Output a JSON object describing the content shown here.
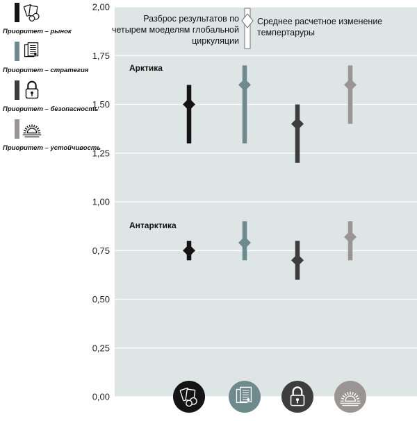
{
  "chart_data": {
    "type": "range",
    "title": "",
    "xlabel": "",
    "ylabel": "",
    "ylim": [
      0,
      2
    ],
    "y_ticks": [
      "0,00",
      "0,25",
      "0,50",
      "0,75",
      "1,00",
      "1,25",
      "1,50",
      "1,75",
      "2,00"
    ],
    "grid": true,
    "background_color": "#dde6e4",
    "groups": [
      {
        "label": "Арктика",
        "points": [
          {
            "series": 0,
            "min": 1.3,
            "max": 1.6,
            "mean": 1.5
          },
          {
            "series": 1,
            "min": 1.3,
            "max": 1.7,
            "mean": 1.6
          },
          {
            "series": 2,
            "min": 1.2,
            "max": 1.5,
            "mean": 1.4
          },
          {
            "series": 3,
            "min": 1.4,
            "max": 1.7,
            "mean": 1.6
          }
        ]
      },
      {
        "label": "Антарктика",
        "points": [
          {
            "series": 0,
            "min": 0.7,
            "max": 0.8,
            "mean": 0.75
          },
          {
            "series": 1,
            "min": 0.7,
            "max": 0.9,
            "mean": 0.79
          },
          {
            "series": 2,
            "min": 0.6,
            "max": 0.8,
            "mean": 0.7
          },
          {
            "series": 3,
            "min": 0.7,
            "max": 0.9,
            "mean": 0.82
          }
        ]
      }
    ],
    "series": [
      {
        "name": "Приоритет – рынок",
        "color": "#141414",
        "icon": "market-icon"
      },
      {
        "name": "Приоритет – стратегия",
        "color": "#6f8a8e",
        "icon": "strategy-document-icon"
      },
      {
        "name": "Приоритет – безопасность",
        "color": "#3d3d3d",
        "icon": "padlock-icon"
      },
      {
        "name": "Приоритет – устойчивость",
        "color": "#9a9494",
        "icon": "sunrise-icon"
      }
    ],
    "annotations": {
      "range_label": [
        "Разброс результатов по",
        "четырем моеделям глобальной",
        "циркуляции"
      ],
      "mean_label": [
        "Среднее расчетное изменение",
        "темпертаруры"
      ]
    }
  }
}
